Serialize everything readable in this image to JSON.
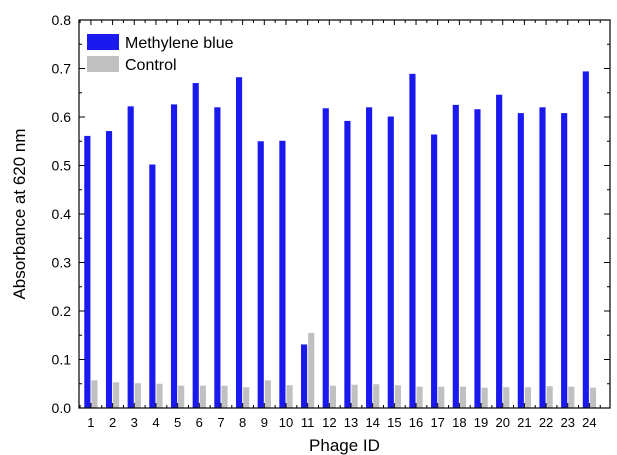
{
  "chart_data": {
    "type": "bar",
    "categories": [
      "1",
      "2",
      "3",
      "4",
      "5",
      "6",
      "7",
      "8",
      "9",
      "10",
      "11",
      "12",
      "13",
      "14",
      "15",
      "16",
      "17",
      "18",
      "19",
      "20",
      "21",
      "22",
      "23",
      "24"
    ],
    "series": [
      {
        "name": "Methylene blue",
        "color": "#1a1aee",
        "values": [
          0.561,
          0.571,
          0.622,
          0.502,
          0.626,
          0.67,
          0.62,
          0.682,
          0.55,
          0.551,
          0.131,
          0.618,
          0.592,
          0.62,
          0.601,
          0.689,
          0.564,
          0.625,
          0.616,
          0.646,
          0.608,
          0.62,
          0.608,
          0.694
        ]
      },
      {
        "name": "Control",
        "color": "#c0c0c0",
        "values": [
          0.057,
          0.053,
          0.051,
          0.05,
          0.046,
          0.046,
          0.046,
          0.043,
          0.057,
          0.047,
          0.155,
          0.046,
          0.048,
          0.049,
          0.047,
          0.044,
          0.044,
          0.044,
          0.042,
          0.043,
          0.043,
          0.045,
          0.044,
          0.042
        ]
      }
    ],
    "xlabel": "Phage ID",
    "ylabel": "Absorbance at 620 nm",
    "ylim": [
      0,
      0.8
    ],
    "yticks": [
      "0.0",
      "0.1",
      "0.2",
      "0.3",
      "0.4",
      "0.5",
      "0.6",
      "0.7",
      "0.8"
    ],
    "legend_position": "top-left",
    "grid": false
  }
}
